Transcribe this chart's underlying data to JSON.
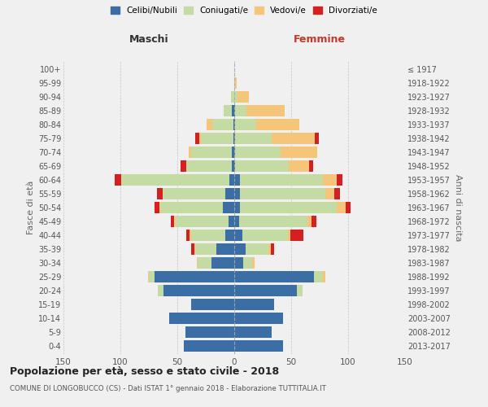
{
  "age_groups": [
    "0-4",
    "5-9",
    "10-14",
    "15-19",
    "20-24",
    "25-29",
    "30-34",
    "35-39",
    "40-44",
    "45-49",
    "50-54",
    "55-59",
    "60-64",
    "65-69",
    "70-74",
    "75-79",
    "80-84",
    "85-89",
    "90-94",
    "95-99",
    "100+"
  ],
  "birth_years": [
    "2013-2017",
    "2008-2012",
    "2003-2007",
    "1998-2002",
    "1993-1997",
    "1988-1992",
    "1983-1987",
    "1978-1982",
    "1973-1977",
    "1968-1972",
    "1963-1967",
    "1958-1962",
    "1953-1957",
    "1948-1952",
    "1943-1947",
    "1938-1942",
    "1933-1937",
    "1928-1932",
    "1923-1927",
    "1918-1922",
    "≤ 1917"
  ],
  "males": {
    "celibe": [
      44,
      43,
      57,
      38,
      62,
      70,
      20,
      16,
      8,
      5,
      10,
      8,
      4,
      2,
      2,
      1,
      1,
      2,
      0,
      0,
      0
    ],
    "coniugato": [
      0,
      0,
      0,
      0,
      5,
      5,
      12,
      18,
      30,
      47,
      55,
      55,
      95,
      40,
      36,
      28,
      18,
      7,
      3,
      0,
      0
    ],
    "vedovo": [
      0,
      0,
      0,
      0,
      0,
      1,
      1,
      1,
      1,
      1,
      1,
      0,
      0,
      0,
      2,
      2,
      5,
      0,
      0,
      0,
      0
    ],
    "divorziato": [
      0,
      0,
      0,
      0,
      0,
      0,
      0,
      3,
      3,
      3,
      4,
      5,
      6,
      5,
      0,
      3,
      0,
      0,
      0,
      0,
      0
    ]
  },
  "females": {
    "nubile": [
      43,
      33,
      43,
      35,
      55,
      70,
      8,
      10,
      7,
      4,
      5,
      5,
      5,
      1,
      1,
      1,
      1,
      1,
      0,
      0,
      0
    ],
    "coniugata": [
      0,
      0,
      0,
      0,
      5,
      8,
      8,
      20,
      40,
      60,
      85,
      75,
      73,
      47,
      40,
      32,
      18,
      10,
      3,
      1,
      0
    ],
    "vedova": [
      0,
      0,
      0,
      0,
      0,
      2,
      2,
      2,
      2,
      4,
      8,
      8,
      12,
      18,
      32,
      38,
      38,
      33,
      10,
      1,
      0
    ],
    "divorziata": [
      0,
      0,
      0,
      0,
      0,
      0,
      0,
      3,
      12,
      4,
      4,
      5,
      5,
      3,
      0,
      3,
      0,
      0,
      0,
      0,
      0
    ]
  },
  "colors": {
    "celibe": "#3b6ea5",
    "coniugato": "#c5dba4",
    "vedovo": "#f5c67a",
    "divorziato": "#d42020"
  },
  "title": "Popolazione per età, sesso e stato civile - 2018",
  "subtitle": "COMUNE DI LONGOBUCCO (CS) - Dati ISTAT 1° gennaio 2018 - Elaborazione TUTTITALIA.IT",
  "xlabel_left": "Maschi",
  "xlabel_right": "Femmine",
  "ylabel_left": "Fasce di età",
  "ylabel_right": "Anni di nascita",
  "xlim": 150,
  "legend_labels": [
    "Celibi/Nubili",
    "Coniugati/e",
    "Vedovi/e",
    "Divorziati/e"
  ],
  "background_color": "#f0f0f0"
}
